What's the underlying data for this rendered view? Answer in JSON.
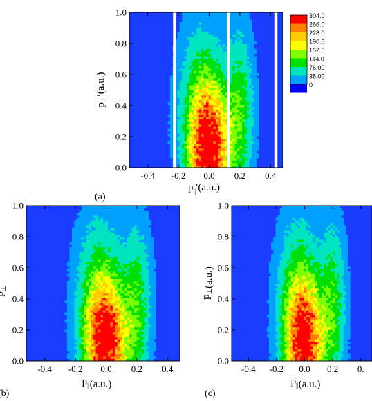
{
  "chart_data": [
    {
      "type": "heatmap",
      "panel_label": "(a)",
      "xlabel": {
        "symbol": "p",
        "sub": "||",
        "prime": "′",
        "unit": "(a.u.)"
      },
      "ylabel": {
        "symbol": "p",
        "sub": "⊥",
        "prime": "′",
        "unit": "(a.u.)"
      },
      "xlim": [
        -0.52,
        0.48
      ],
      "ylim": [
        0,
        1.0
      ],
      "x_ticks": [
        "-0.4",
        "-0.2",
        "0.0",
        "0.2",
        "0.4"
      ],
      "y_ticks": [
        "0.0",
        "0.2",
        "0.4",
        "0.6",
        "0.8",
        "1.0"
      ],
      "gaps": [
        [
          -0.235,
          -0.215
        ],
        [
          0.115,
          0.135
        ],
        [
          0.425,
          0.445
        ]
      ],
      "lobes": [
        {
          "cx": 0.0,
          "cy": 0.1,
          "sx": 0.09,
          "sy": 0.28,
          "peak": 300
        },
        {
          "cx": -0.05,
          "cy": 0.45,
          "sx": 0.1,
          "sy": 0.35,
          "peak": 80
        },
        {
          "cx": 0.2,
          "cy": 0.35,
          "sx": 0.06,
          "sy": 0.35,
          "peak": 100
        }
      ]
    },
    {
      "type": "heatmap",
      "panel_label": "(b)",
      "xlabel": {
        "symbol": "p",
        "sub": "||",
        "prime": "",
        "unit": "(a.u.)"
      },
      "ylabel": {
        "symbol": "p",
        "sub": "⊥",
        "prime": "′",
        "unit": ""
      },
      "xlim": [
        -0.52,
        0.48
      ],
      "ylim": [
        0,
        1.0
      ],
      "x_ticks": [
        "-0.4",
        "-0.2",
        "0.0",
        "0.2",
        "0.4"
      ],
      "y_ticks": [
        "0.0",
        "0.2",
        "0.4",
        "0.6",
        "0.8",
        "1.0"
      ],
      "gaps": [],
      "lobes": [
        {
          "cx": 0.0,
          "cy": 0.1,
          "sx": 0.09,
          "sy": 0.28,
          "peak": 300
        },
        {
          "cx": -0.05,
          "cy": 0.45,
          "sx": 0.1,
          "sy": 0.35,
          "peak": 80
        },
        {
          "cx": 0.2,
          "cy": 0.35,
          "sx": 0.06,
          "sy": 0.35,
          "peak": 100
        }
      ]
    },
    {
      "type": "heatmap",
      "panel_label": "(c)",
      "xlabel": {
        "symbol": "p",
        "sub": "||",
        "prime": "",
        "unit": "(a.u.)"
      },
      "ylabel": {
        "symbol": "p",
        "sub": "⊥",
        "prime": "",
        "unit": "(a.u.)"
      },
      "xlim": [
        -0.52,
        0.48
      ],
      "ylim": [
        0,
        1.0
      ],
      "x_ticks": [
        "-0.4",
        "-0.2",
        "0.0",
        "0.2",
        "0."
      ],
      "y_ticks": [
        "0.0",
        "0.2",
        "0.4",
        "0.6",
        "0.8",
        "1.0"
      ],
      "gaps": [],
      "lobes": [
        {
          "cx": 0.0,
          "cy": 0.1,
          "sx": 0.09,
          "sy": 0.28,
          "peak": 300
        },
        {
          "cx": -0.05,
          "cy": 0.45,
          "sx": 0.1,
          "sy": 0.35,
          "peak": 80
        },
        {
          "cx": 0.2,
          "cy": 0.35,
          "sx": 0.06,
          "sy": 0.35,
          "peak": 100
        }
      ]
    }
  ],
  "colorbar": {
    "levels": [
      "304.0",
      "266.0",
      "228.0",
      "190.0",
      "152.0",
      "114.0",
      "76.00",
      "38.00",
      "0"
    ],
    "values": [
      304,
      266,
      228,
      190,
      152,
      114,
      76,
      38,
      0
    ],
    "colors": [
      "#ff0000",
      "#ff7f00",
      "#ffcc00",
      "#ffff00",
      "#7fff00",
      "#00e000",
      "#00e5c0",
      "#00a0ff",
      "#0000ff"
    ],
    "background": "#1a3cff"
  }
}
